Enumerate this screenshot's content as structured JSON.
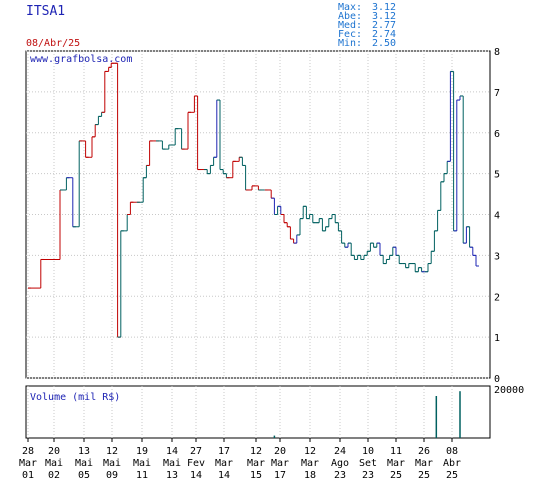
{
  "ticker": "ITSA1",
  "date": "08/Abr/25",
  "watermark": "www.grafbolsa.com",
  "stats": [
    {
      "label": "Max:",
      "value": "3.12"
    },
    {
      "label": "Abe:",
      "value": "3.12"
    },
    {
      "label": "Med:",
      "value": "2.77"
    },
    {
      "label": "Fec:",
      "value": "2.74"
    },
    {
      "label": "Min:",
      "value": "2.50"
    }
  ],
  "volume_label": "Volume (mil R$)",
  "colors": {
    "up": "#006060",
    "down": "#c00000",
    "blue": "#1e24b4",
    "grid": "#c8c8c8"
  },
  "chart_data": {
    "type": "bar",
    "subtype": "ohlc",
    "ylim": [
      0,
      8
    ],
    "yticks": [
      "0",
      "1",
      "2",
      "3",
      "4",
      "5",
      "6",
      "7",
      "8"
    ],
    "grid": true,
    "x_ticks": [
      {
        "day": "28",
        "mon": "Mar",
        "yr": "01"
      },
      {
        "day": "20",
        "mon": "Mai",
        "yr": "02"
      },
      {
        "day": "13",
        "mon": "Mai",
        "yr": "05"
      },
      {
        "day": "12",
        "mon": "Mai",
        "yr": "09"
      },
      {
        "day": "19",
        "mon": "Mai",
        "yr": "11"
      },
      {
        "day": "14",
        "mon": "Mai",
        "yr": "13"
      },
      {
        "day": "27",
        "mon": "Fev",
        "yr": "14"
      },
      {
        "day": "17",
        "mon": "Mar",
        "yr": "14"
      },
      {
        "day": "12",
        "mon": "Mar",
        "yr": "15"
      },
      {
        "day": "20",
        "mon": "Mar",
        "yr": "17"
      },
      {
        "day": "12",
        "mon": "Mar",
        "yr": "18"
      },
      {
        "day": "24",
        "mon": "Ago",
        "yr": "23"
      },
      {
        "day": "10",
        "mon": "Set",
        "yr": "23"
      },
      {
        "day": "11",
        "mon": "Mar",
        "yr": "25"
      },
      {
        "day": "26",
        "mon": "Mar",
        "yr": "25"
      },
      {
        "day": "08",
        "mon": "Abr",
        "yr": "25"
      }
    ],
    "price_series": [
      [
        0,
        2.2,
        "r"
      ],
      [
        2,
        2.9,
        "r"
      ],
      [
        5,
        4.6,
        "r"
      ],
      [
        6,
        4.9,
        "u"
      ],
      [
        7,
        3.7,
        "b"
      ],
      [
        8,
        5.8,
        "u"
      ],
      [
        9,
        5.4,
        "r"
      ],
      [
        10,
        5.9,
        "r"
      ],
      [
        10.5,
        6.2,
        "r"
      ],
      [
        11,
        6.4,
        "u"
      ],
      [
        11.5,
        6.5,
        "u"
      ],
      [
        12,
        7.5,
        "r"
      ],
      [
        12.6,
        7.6,
        "r"
      ],
      [
        13,
        7.7,
        "r"
      ],
      [
        13.5,
        7.7,
        "r"
      ],
      [
        14,
        1.0,
        "r"
      ],
      [
        14.5,
        3.6,
        "u"
      ],
      [
        15.5,
        4.0,
        "u"
      ],
      [
        16,
        4.3,
        "r"
      ],
      [
        17,
        4.3,
        "r"
      ],
      [
        18,
        4.9,
        "u"
      ],
      [
        18.5,
        5.2,
        "u"
      ],
      [
        19,
        5.8,
        "r"
      ],
      [
        20,
        5.8,
        "r"
      ],
      [
        21,
        5.6,
        "u"
      ],
      [
        22,
        5.7,
        "u"
      ],
      [
        23,
        6.1,
        "u"
      ],
      [
        24,
        5.6,
        "u"
      ],
      [
        25,
        6.5,
        "r"
      ],
      [
        26,
        6.9,
        "r"
      ],
      [
        26.5,
        5.1,
        "r"
      ],
      [
        27.5,
        5.1,
        "r"
      ],
      [
        28,
        5.0,
        "u"
      ],
      [
        28.5,
        5.2,
        "u"
      ],
      [
        29,
        5.4,
        "u"
      ],
      [
        29.5,
        6.8,
        "b"
      ],
      [
        30,
        5.1,
        "u"
      ],
      [
        30.5,
        5.0,
        "u"
      ],
      [
        31,
        4.9,
        "u"
      ],
      [
        32,
        5.3,
        "r"
      ],
      [
        33,
        5.4,
        "r"
      ],
      [
        33.5,
        5.2,
        "u"
      ],
      [
        34,
        4.6,
        "u"
      ],
      [
        35,
        4.7,
        "r"
      ],
      [
        36,
        4.6,
        "r"
      ],
      [
        37,
        4.6,
        "u"
      ],
      [
        38,
        4.4,
        "r"
      ],
      [
        38.5,
        4.0,
        "b"
      ],
      [
        39,
        4.2,
        "u"
      ],
      [
        39.5,
        4.0,
        "b"
      ],
      [
        40,
        3.8,
        "r"
      ],
      [
        40.5,
        3.7,
        "r"
      ],
      [
        41,
        3.4,
        "r"
      ],
      [
        41.5,
        3.3,
        "r"
      ],
      [
        42,
        3.5,
        "b"
      ],
      [
        42.5,
        3.9,
        "u"
      ],
      [
        43,
        4.2,
        "u"
      ],
      [
        43.5,
        3.9,
        "u"
      ],
      [
        44,
        4.0,
        "u"
      ],
      [
        44.5,
        3.8,
        "u"
      ],
      [
        45,
        3.8,
        "u"
      ],
      [
        45.5,
        3.9,
        "u"
      ],
      [
        46,
        3.6,
        "u"
      ],
      [
        46.5,
        3.7,
        "u"
      ],
      [
        47,
        3.9,
        "u"
      ],
      [
        47.5,
        4.0,
        "u"
      ],
      [
        48,
        3.8,
        "u"
      ],
      [
        48.5,
        3.6,
        "u"
      ],
      [
        49,
        3.3,
        "u"
      ],
      [
        49.5,
        3.2,
        "u"
      ],
      [
        50,
        3.3,
        "b"
      ],
      [
        50.5,
        3.0,
        "u"
      ],
      [
        51,
        2.9,
        "u"
      ],
      [
        51.5,
        3.0,
        "u"
      ],
      [
        52,
        2.9,
        "u"
      ],
      [
        52.5,
        3.0,
        "u"
      ],
      [
        53,
        3.1,
        "u"
      ],
      [
        53.5,
        3.3,
        "u"
      ],
      [
        54,
        3.2,
        "u"
      ],
      [
        54.5,
        3.3,
        "u"
      ],
      [
        55,
        3.0,
        "b"
      ],
      [
        55.5,
        2.8,
        "u"
      ],
      [
        56,
        2.9,
        "u"
      ],
      [
        56.5,
        3.0,
        "u"
      ],
      [
        57,
        3.2,
        "u"
      ],
      [
        57.5,
        3.0,
        "b"
      ],
      [
        58,
        2.8,
        "u"
      ],
      [
        58.5,
        2.8,
        "u"
      ],
      [
        59,
        2.7,
        "u"
      ],
      [
        59.5,
        2.8,
        "u"
      ],
      [
        60,
        2.8,
        "u"
      ],
      [
        60.5,
        2.6,
        "u"
      ],
      [
        61,
        2.7,
        "u"
      ],
      [
        61.5,
        2.6,
        "u"
      ],
      [
        62,
        2.6,
        "b"
      ],
      [
        62.5,
        2.8,
        "u"
      ],
      [
        63,
        3.1,
        "u"
      ],
      [
        63.5,
        3.6,
        "u"
      ],
      [
        64,
        4.1,
        "u"
      ],
      [
        64.5,
        4.8,
        "u"
      ],
      [
        65,
        5.0,
        "u"
      ],
      [
        65.5,
        5.3,
        "u"
      ],
      [
        66,
        7.5,
        "b"
      ],
      [
        66.5,
        3.6,
        "u"
      ],
      [
        67,
        6.8,
        "b"
      ],
      [
        67.5,
        6.9,
        "b"
      ],
      [
        68,
        3.3,
        "u"
      ],
      [
        68.5,
        3.7,
        "b"
      ],
      [
        69,
        3.2,
        "u"
      ],
      [
        69.5,
        3.0,
        "b"
      ],
      [
        70,
        2.74,
        "b"
      ]
    ],
    "volume_ylim": [
      0,
      20000
    ],
    "volume_ytick": "20000",
    "volume_series": [
      [
        38.5,
        1000
      ],
      [
        63.8,
        17500
      ],
      [
        67.5,
        19500
      ]
    ]
  }
}
